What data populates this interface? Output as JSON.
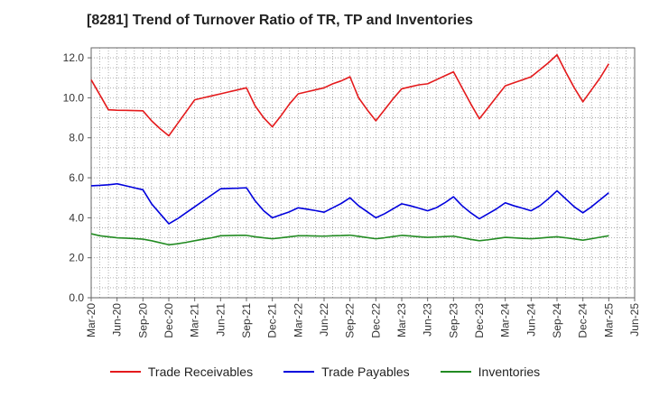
{
  "chart_data": {
    "type": "line",
    "title": "[8281]  Trend of Turnover Ratio of TR, TP and Inventories",
    "xlabel": "",
    "ylabel": "",
    "ylim": [
      0,
      12.5
    ],
    "yticks": [
      0,
      2,
      4,
      6,
      8,
      10,
      12
    ],
    "ytick_labels": [
      "0.0",
      "2.0",
      "4.0",
      "6.0",
      "8.0",
      "10.0",
      "12.0"
    ],
    "xtick_labels": [
      "Mar-20",
      "Jun-20",
      "Sep-20",
      "Dec-20",
      "Mar-21",
      "Jun-21",
      "Sep-21",
      "Dec-21",
      "Mar-22",
      "Jun-22",
      "Sep-22",
      "Dec-22",
      "Mar-23",
      "Jun-23",
      "Sep-23",
      "Dec-23",
      "Mar-24",
      "Jun-24",
      "Sep-24",
      "Dec-24",
      "Mar-25",
      "Jun-25"
    ],
    "grid": true,
    "legend_position": "bottom",
    "x": [
      "Mar-20",
      "Apr-20",
      "May-20",
      "Jun-20",
      "Jul-20",
      "Aug-20",
      "Sep-20",
      "Oct-20",
      "Nov-20",
      "Dec-20",
      "Jan-21",
      "Feb-21",
      "Mar-21",
      "Apr-21",
      "May-21",
      "Jun-21",
      "Jul-21",
      "Aug-21",
      "Sep-21",
      "Oct-21",
      "Nov-21",
      "Dec-21",
      "Jan-22",
      "Feb-22",
      "Mar-22",
      "Apr-22",
      "May-22",
      "Jun-22",
      "Jul-22",
      "Aug-22",
      "Sep-22",
      "Oct-22",
      "Nov-22",
      "Dec-22",
      "Jan-23",
      "Feb-23",
      "Mar-23",
      "Apr-23",
      "May-23",
      "Jun-23",
      "Jul-23",
      "Aug-23",
      "Sep-23",
      "Oct-23",
      "Nov-23",
      "Dec-23",
      "Jan-24",
      "Feb-24",
      "Mar-24",
      "Apr-24",
      "May-24",
      "Jun-24",
      "Jul-24",
      "Aug-24",
      "Sep-24",
      "Oct-24",
      "Nov-24",
      "Dec-24",
      "Jan-25",
      "Feb-25",
      "Mar-25"
    ],
    "series": [
      {
        "name": "Trade Receivables",
        "color": "#e41a1c",
        "values": [
          10.9,
          10.15,
          9.4,
          9.38,
          9.37,
          9.36,
          9.35,
          8.85,
          8.45,
          8.1,
          8.7,
          9.3,
          9.9,
          10.0,
          10.1,
          10.2,
          10.3,
          10.4,
          10.5,
          9.6,
          9.0,
          8.55,
          9.1,
          9.7,
          10.2,
          10.3,
          10.4,
          10.5,
          10.7,
          10.85,
          11.05,
          10.0,
          9.4,
          8.85,
          9.4,
          9.95,
          10.45,
          10.55,
          10.65,
          10.7,
          10.9,
          11.1,
          11.3,
          10.5,
          9.7,
          8.95,
          9.5,
          10.05,
          10.6,
          10.75,
          10.9,
          11.05,
          11.4,
          11.75,
          12.15,
          11.3,
          10.5,
          9.8,
          10.4,
          11.0,
          11.7
        ]
      },
      {
        "name": "Trade Payables",
        "color": "#0000dd",
        "values": [
          5.6,
          5.62,
          5.65,
          5.7,
          5.6,
          5.5,
          5.4,
          4.7,
          4.2,
          3.7,
          3.95,
          4.25,
          4.55,
          4.85,
          5.15,
          5.45,
          5.47,
          5.48,
          5.5,
          4.85,
          4.35,
          4.0,
          4.15,
          4.3,
          4.5,
          4.43,
          4.36,
          4.28,
          4.5,
          4.72,
          5.0,
          4.6,
          4.3,
          4.0,
          4.2,
          4.45,
          4.7,
          4.6,
          4.48,
          4.35,
          4.5,
          4.75,
          5.05,
          4.6,
          4.25,
          3.95,
          4.2,
          4.45,
          4.75,
          4.6,
          4.48,
          4.35,
          4.6,
          4.95,
          5.35,
          4.95,
          4.55,
          4.25,
          4.55,
          4.9,
          5.25
        ]
      },
      {
        "name": "Inventories",
        "color": "#228b22",
        "values": [
          3.2,
          3.1,
          3.05,
          3.0,
          2.98,
          2.96,
          2.93,
          2.85,
          2.75,
          2.65,
          2.7,
          2.77,
          2.85,
          2.93,
          3.0,
          3.1,
          3.11,
          3.12,
          3.12,
          3.05,
          3.0,
          2.95,
          3.0,
          3.05,
          3.1,
          3.1,
          3.09,
          3.08,
          3.1,
          3.11,
          3.13,
          3.07,
          3.01,
          2.95,
          3.0,
          3.06,
          3.12,
          3.09,
          3.05,
          3.02,
          3.04,
          3.06,
          3.08,
          3.0,
          2.92,
          2.85,
          2.9,
          2.96,
          3.02,
          3.0,
          2.97,
          2.95,
          2.98,
          3.02,
          3.05,
          3.0,
          2.94,
          2.88,
          2.95,
          3.03,
          3.1
        ]
      }
    ]
  }
}
